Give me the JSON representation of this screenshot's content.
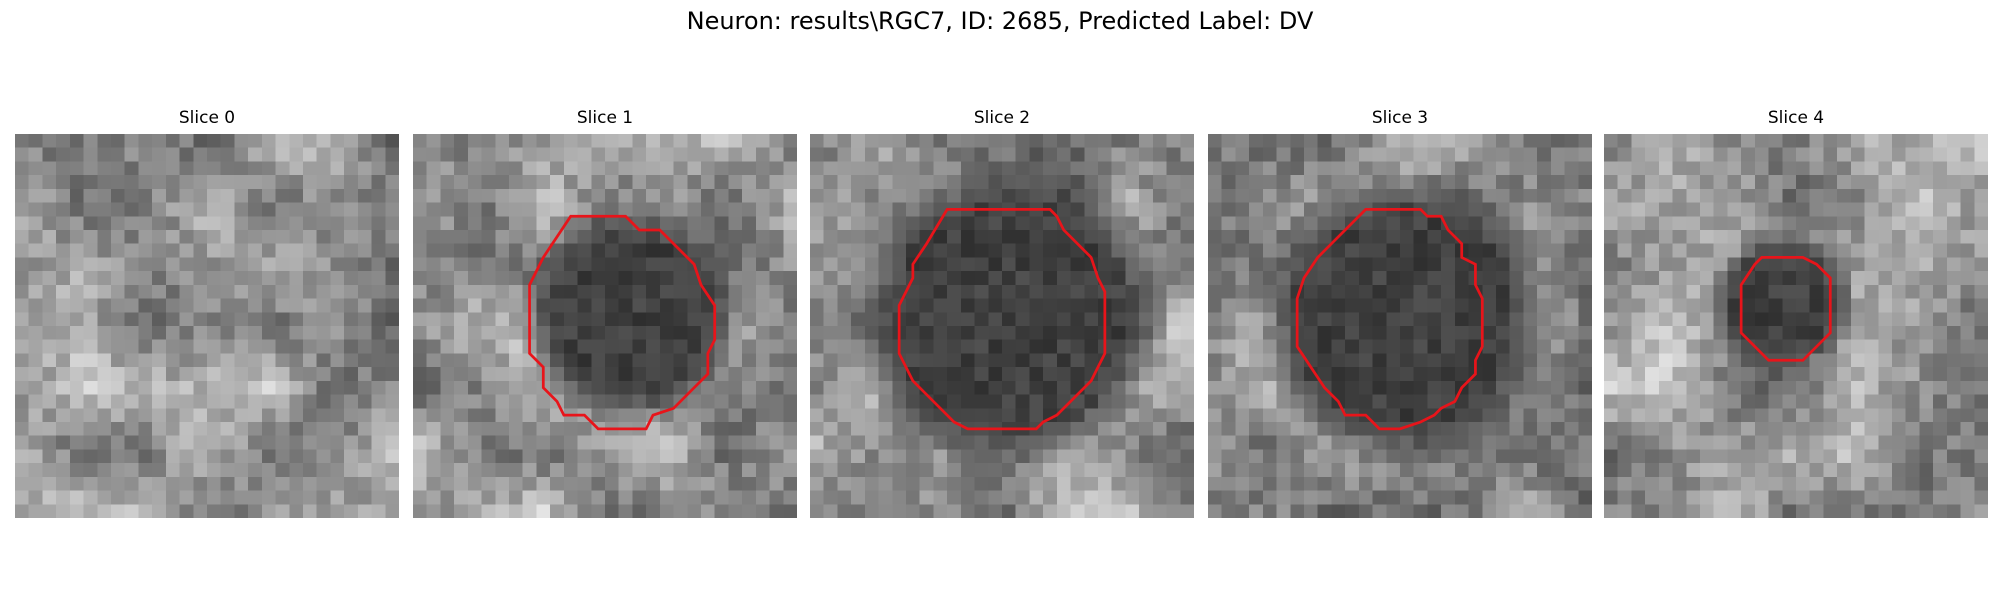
{
  "figure": {
    "title": "Neuron: results\\RGC7, ID: 2685, Predicted Label: DV"
  },
  "panels": [
    {
      "title": "Slice 0",
      "seed": 11,
      "blob": null,
      "outline": null
    },
    {
      "title": "Slice 1",
      "seed": 23,
      "blob": {
        "cx": 15.8,
        "cy": 13.2,
        "r": 5.8,
        "depth": 0.55
      },
      "outline": [
        [
          11.5,
          6.0
        ],
        [
          15.5,
          6.0
        ],
        [
          16.5,
          7.0
        ],
        [
          18.0,
          7.0
        ],
        [
          20.5,
          9.5
        ],
        [
          21.0,
          11.0
        ],
        [
          22.0,
          12.5
        ],
        [
          22.0,
          15.0
        ],
        [
          21.5,
          16.0
        ],
        [
          21.5,
          17.5
        ],
        [
          20.5,
          18.5
        ],
        [
          19.0,
          20.0
        ],
        [
          17.5,
          20.5
        ],
        [
          17.0,
          21.5
        ],
        [
          13.5,
          21.5
        ],
        [
          12.5,
          20.5
        ],
        [
          11.0,
          20.5
        ],
        [
          10.5,
          19.5
        ],
        [
          9.5,
          18.5
        ],
        [
          9.5,
          17.0
        ],
        [
          8.5,
          16.0
        ],
        [
          8.5,
          11.0
        ],
        [
          9.5,
          9.0
        ]
      ]
    },
    {
      "title": "Slice 2",
      "seed": 37,
      "blob": {
        "cx": 14.5,
        "cy": 13.2,
        "r": 8.2,
        "depth": 0.62
      },
      "outline": [
        [
          10.0,
          5.5
        ],
        [
          17.5,
          5.5
        ],
        [
          18.0,
          6.0
        ],
        [
          18.5,
          7.0
        ],
        [
          20.5,
          9.0
        ],
        [
          21.0,
          10.5
        ],
        [
          21.5,
          11.5
        ],
        [
          21.5,
          16.0
        ],
        [
          21.0,
          17.0
        ],
        [
          20.5,
          18.0
        ],
        [
          18.0,
          20.5
        ],
        [
          17.0,
          21.0
        ],
        [
          16.5,
          21.5
        ],
        [
          11.5,
          21.5
        ],
        [
          10.5,
          21.0
        ],
        [
          8.5,
          19.0
        ],
        [
          7.5,
          18.0
        ],
        [
          6.5,
          16.0
        ],
        [
          6.5,
          12.5
        ],
        [
          7.0,
          11.5
        ],
        [
          7.5,
          10.5
        ],
        [
          7.5,
          9.5
        ],
        [
          8.5,
          8.0
        ]
      ]
    },
    {
      "title": "Slice 3",
      "seed": 53,
      "blob": {
        "cx": 14.3,
        "cy": 13.5,
        "r": 7.8,
        "depth": 0.6
      },
      "outline": [
        [
          11.5,
          5.5
        ],
        [
          15.5,
          5.5
        ],
        [
          16.0,
          6.0
        ],
        [
          17.0,
          6.0
        ],
        [
          17.5,
          7.0
        ],
        [
          18.5,
          8.0
        ],
        [
          18.5,
          9.0
        ],
        [
          19.5,
          9.5
        ],
        [
          19.5,
          11.0
        ],
        [
          20.0,
          12.0
        ],
        [
          20.0,
          15.5
        ],
        [
          19.5,
          16.5
        ],
        [
          19.5,
          17.5
        ],
        [
          18.5,
          18.5
        ],
        [
          18.0,
          19.5
        ],
        [
          17.0,
          20.0
        ],
        [
          16.5,
          20.5
        ],
        [
          15.5,
          21.0
        ],
        [
          14.0,
          21.5
        ],
        [
          12.5,
          21.5
        ],
        [
          11.5,
          20.5
        ],
        [
          10.0,
          20.5
        ],
        [
          9.5,
          19.5
        ],
        [
          8.5,
          18.5
        ],
        [
          7.5,
          17.0
        ],
        [
          6.5,
          15.5
        ],
        [
          6.5,
          12.0
        ],
        [
          7.0,
          10.5
        ],
        [
          8.0,
          9.0
        ],
        [
          9.0,
          8.0
        ]
      ]
    },
    {
      "title": "Slice 4",
      "seed": 71,
      "blob": {
        "cx": 13.0,
        "cy": 12.3,
        "r": 3.7,
        "depth": 0.45
      },
      "outline": [
        [
          11.5,
          9.0
        ],
        [
          14.5,
          9.0
        ],
        [
          15.5,
          9.5
        ],
        [
          16.5,
          10.5
        ],
        [
          16.5,
          14.5
        ],
        [
          15.5,
          15.5
        ],
        [
          14.5,
          16.5
        ],
        [
          12.0,
          16.5
        ],
        [
          11.0,
          15.5
        ],
        [
          10.0,
          14.5
        ],
        [
          10.0,
          11.0
        ],
        [
          11.0,
          9.5
        ]
      ]
    }
  ],
  "colors": {
    "outline": "#e8141a",
    "background": "#ffffff"
  }
}
